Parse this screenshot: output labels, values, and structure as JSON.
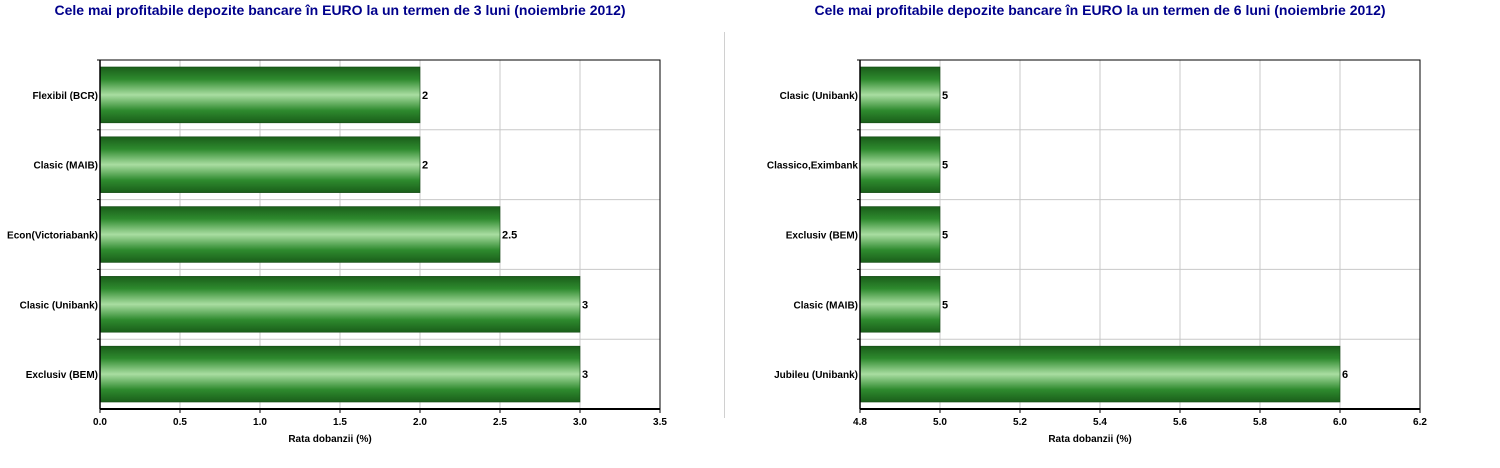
{
  "colors": {
    "title": "#00008b",
    "bar_dark": "#1f6e1f",
    "bar_light": "#a8dca0",
    "grid": "#c8c8c8",
    "separator": "#d0d0d0"
  },
  "chart_data": [
    {
      "type": "bar",
      "orientation": "horizontal",
      "title": "Cele mai profitabile depozite bancare în EURO la un termen de 3 luni (noiembrie 2012)",
      "xlabel": "Rata dobanzii (%)",
      "ylabel": "",
      "categories": [
        "Flexibil (BCR)",
        "Clasic (MAIB)",
        "Econ(Victoriabank)",
        "Clasic (Unibank)",
        "Exclusiv (BEM)"
      ],
      "values": [
        2,
        2,
        2.5,
        3,
        3
      ],
      "data_labels": [
        "2",
        "2",
        "2.5",
        "3",
        "3"
      ],
      "xlim": [
        0,
        3.5
      ],
      "xticks": [
        "0.0",
        "0.5",
        "1.0",
        "1.5",
        "2.0",
        "2.5",
        "3.0",
        "3.5"
      ],
      "grid": true
    },
    {
      "type": "bar",
      "orientation": "horizontal",
      "title": "Cele mai profitabile depozite bancare în EURO la un termen de 6 luni (noiembrie 2012)",
      "xlabel": "Rata dobanzii (%)",
      "ylabel": "",
      "categories": [
        "Clasic (Unibank)",
        "Classico,Eximbank",
        "Exclusiv (BEM)",
        "Clasic (MAIB)",
        "Jubileu (Unibank)"
      ],
      "values": [
        5,
        5,
        5,
        5,
        6
      ],
      "data_labels": [
        "5",
        "5",
        "5",
        "5",
        "6"
      ],
      "xlim": [
        4.8,
        6.2
      ],
      "xticks": [
        "4.8",
        "5.0",
        "5.2",
        "5.4",
        "5.6",
        "5.8",
        "6.0",
        "6.2"
      ],
      "grid": true
    }
  ]
}
